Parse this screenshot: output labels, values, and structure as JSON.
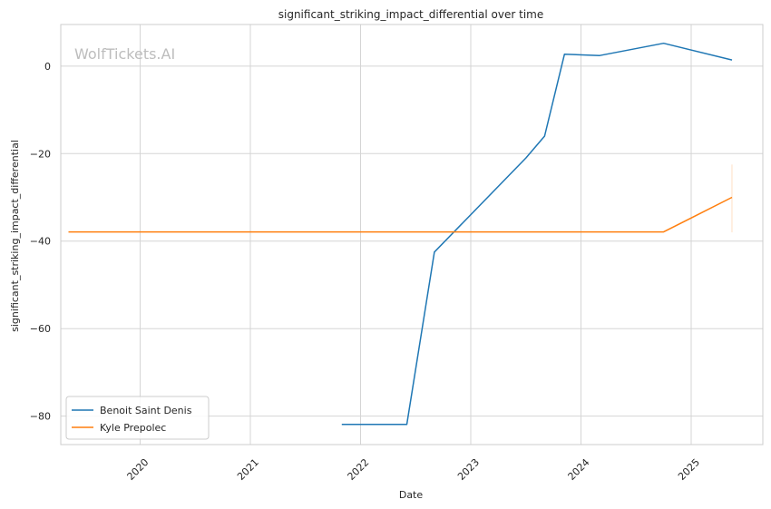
{
  "chart_data": {
    "type": "line",
    "title": "significant_striking_impact_differential over time",
    "xlabel": "Date",
    "ylabel": "significant_striking_impact_differential",
    "watermark": "WolfTickets.AI",
    "xlim": [
      2019.28,
      2025.65
    ],
    "ylim": [
      -86.5,
      9.5
    ],
    "x_ticks": [
      2020,
      2021,
      2022,
      2023,
      2024,
      2025
    ],
    "x_tick_labels": [
      "2020",
      "2021",
      "2022",
      "2023",
      "2024",
      "2025"
    ],
    "y_ticks": [
      0,
      -20,
      -40,
      -60,
      -80
    ],
    "y_tick_labels": [
      "0",
      "−20",
      "−40",
      "−60",
      "−80"
    ],
    "grid": true,
    "legend_position": "lower-left",
    "series": [
      {
        "name": "Benoit Saint Denis",
        "color": "#1f77b4",
        "points": [
          [
            2021.83,
            -81.9
          ],
          [
            2022.42,
            -81.9
          ],
          [
            2022.67,
            -42.5
          ],
          [
            2023.5,
            -21.0
          ],
          [
            2023.67,
            -16.0
          ],
          [
            2023.85,
            2.7
          ],
          [
            2024.17,
            2.4
          ],
          [
            2024.75,
            5.2
          ],
          [
            2025.37,
            1.4
          ]
        ]
      },
      {
        "name": "Kyle Prepolec",
        "color": "#ff7f0e",
        "points": [
          [
            2019.35,
            -37.9
          ],
          [
            2024.75,
            -37.9
          ],
          [
            2025.37,
            -30.0
          ]
        ],
        "band": {
          "x": 2025.37,
          "low": -38.0,
          "high": -22.5
        }
      }
    ]
  }
}
